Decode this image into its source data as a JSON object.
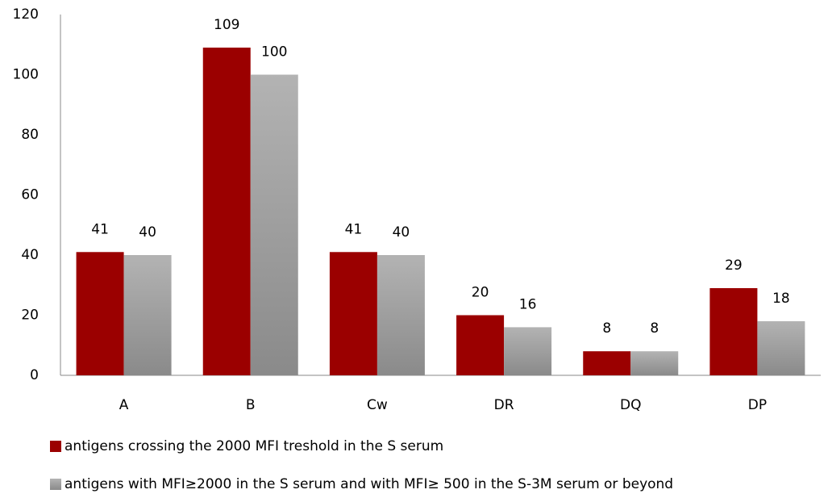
{
  "chart_data": {
    "type": "bar",
    "categories": [
      "A",
      "B",
      "Cw",
      "DR",
      "DQ",
      "DP"
    ],
    "series": [
      {
        "name": "antigens crossing the 2000 MFI treshold in the S serum",
        "color": "#9b0000",
        "values": [
          41,
          109,
          41,
          20,
          8,
          29
        ]
      },
      {
        "name": "antigens with MFI≥2000 in the S serum and with MFI≥ 500 in the S-3M serum or beyond",
        "color": "#a6a6a6",
        "values": [
          40,
          100,
          40,
          16,
          8,
          18
        ]
      }
    ],
    "ylim": [
      0,
      120
    ],
    "yticks": [
      0,
      20,
      40,
      60,
      80,
      100,
      120
    ],
    "grid": false,
    "legend": "bottom"
  }
}
